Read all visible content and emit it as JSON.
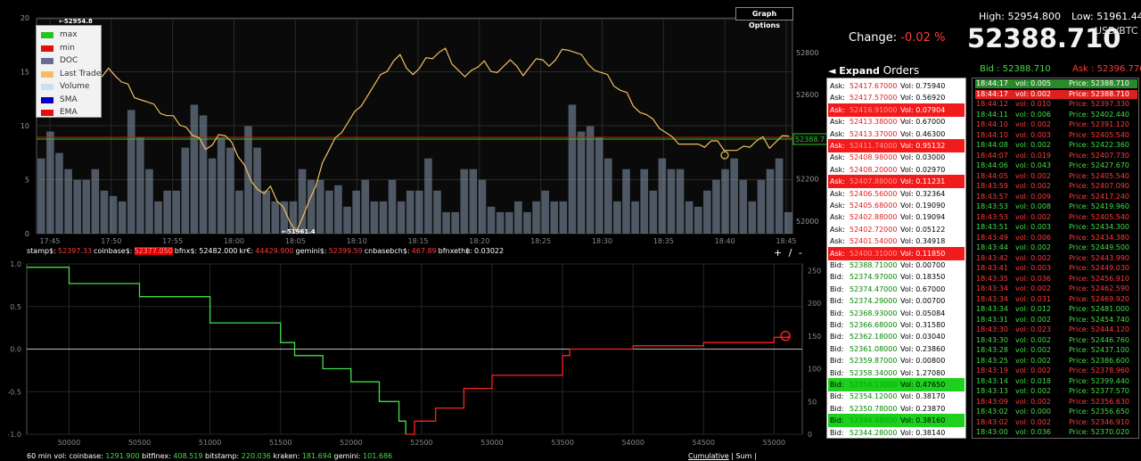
{
  "top_chart": {
    "graph_options_label": "Graph Options",
    "max_annotation": "52954.8",
    "min_annotation": "51961.4",
    "current_price_tag": "52388.7",
    "legend": [
      {
        "label": "max",
        "color": "#22c322"
      },
      {
        "label": "min",
        "color": "#e01010"
      },
      {
        "label": "DOC",
        "color": "#6a6a9a"
      },
      {
        "label": "Last Trade",
        "color": "#f0c060"
      },
      {
        "label": "Volume",
        "color": "#c8e0f0"
      },
      {
        "label": "SMA",
        "color": "#0000c8"
      },
      {
        "label": "EMA",
        "color": "#e01010"
      }
    ]
  },
  "chart_data": [
    {
      "type": "line",
      "x_ticks": [
        "17:45",
        "17:50",
        "17:55",
        "18:00",
        "18:05",
        "18:10",
        "18:15",
        "18:20",
        "18:25",
        "18:30",
        "18:35",
        "18:40",
        "18:45"
      ],
      "y_left_ticks": [
        "0",
        "5",
        "10",
        "15",
        "20"
      ],
      "y_right_ticks": [
        "52000",
        "52200",
        "52400",
        "52600",
        "52800"
      ],
      "ylim_left": [
        0,
        20
      ],
      "ylim_right": [
        51940,
        52960
      ],
      "grid": true,
      "legend_position": "top-left",
      "volume_bars": [
        7,
        9.5,
        7.5,
        6,
        5,
        5,
        6,
        4,
        3.5,
        3,
        11.5,
        9,
        6,
        3,
        4,
        4,
        8,
        12,
        11,
        7,
        9,
        8,
        4,
        10,
        8,
        4,
        3,
        3,
        3,
        6,
        5,
        5,
        4,
        4.5,
        2.5,
        4,
        5,
        3,
        3,
        5,
        3,
        4,
        4,
        7,
        4,
        2,
        2,
        6,
        6,
        5,
        2.5,
        2,
        2,
        3,
        2,
        3,
        4,
        3,
        3,
        12,
        9.5,
        10,
        9,
        7,
        3,
        6,
        3,
        6,
        4,
        7,
        6,
        6,
        3,
        2.5,
        4,
        5,
        6,
        7,
        5,
        3,
        5,
        6,
        7,
        2
      ],
      "last_trade": [
        52900,
        52880,
        52850,
        52820,
        52790,
        52760,
        52740,
        52700,
        52690,
        52680,
        52710,
        52700,
        52660,
        52640,
        52600,
        52580,
        52560,
        52540,
        52520,
        52500,
        52490,
        52470,
        52450,
        52400,
        52380,
        52350,
        52360,
        52400,
        52420,
        52380,
        52300,
        52250,
        52200,
        52150,
        52120,
        52180,
        52100,
        52060,
        51980,
        51961,
        52020,
        52090,
        52180,
        52280,
        52330,
        52380,
        52430,
        52470,
        52510,
        52560,
        52600,
        52640,
        52680,
        52720,
        52760,
        52780,
        52740,
        52700,
        52720,
        52760,
        52780,
        52800,
        52810,
        52760,
        52720,
        52680,
        52700,
        52740,
        52760,
        52700,
        52720,
        52740,
        52760,
        52720,
        52700,
        52730,
        52760,
        52780,
        52740,
        52760,
        52800,
        52820,
        52800,
        52780,
        52760,
        52720,
        52700,
        52680,
        52650,
        52620,
        52600,
        52560,
        52520,
        52500,
        52470,
        52450,
        52420,
        52390,
        52380,
        52370,
        52360,
        52350,
        52360,
        52380,
        52370,
        52350,
        52340,
        52330,
        52340,
        52360,
        52380,
        52390,
        52360,
        52380,
        52400,
        52388
      ],
      "max_value": 52954.8,
      "min_value": 51961.4,
      "last_price": 52388.7
    },
    {
      "type": "line",
      "x_ticks": [
        "50000",
        "50500",
        "51000",
        "51500",
        "52000",
        "52500",
        "53000",
        "53500",
        "54000",
        "54500",
        "55000"
      ],
      "y_left_ticks": [
        "-1.0",
        "-0.5",
        "0.0",
        "0.5",
        "1.0"
      ],
      "y_right_ticks": [
        "0",
        "50",
        "100",
        "150",
        "200",
        "250"
      ],
      "xlim": [
        49700,
        55200
      ],
      "ylim_right": [
        0,
        260
      ],
      "grid": true,
      "bids": [
        [
          49700,
          255
        ],
        [
          50000,
          250
        ],
        [
          50000,
          230
        ],
        [
          50500,
          210
        ],
        [
          51000,
          170
        ],
        [
          51500,
          140
        ],
        [
          51600,
          120
        ],
        [
          51800,
          100
        ],
        [
          52000,
          80
        ],
        [
          52200,
          50
        ],
        [
          52340,
          20
        ],
        [
          52388,
          0
        ]
      ],
      "asks": [
        [
          52388,
          0
        ],
        [
          52450,
          20
        ],
        [
          52600,
          40
        ],
        [
          52800,
          70
        ],
        [
          53000,
          90
        ],
        [
          53500,
          120
        ],
        [
          53550,
          130
        ],
        [
          54000,
          135
        ],
        [
          54500,
          140
        ],
        [
          55000,
          148
        ],
        [
          55100,
          150
        ]
      ]
    }
  ],
  "ticker": [
    {
      "label": "stamp$:",
      "value": "52397.33",
      "highlight": false
    },
    {
      "label": "coinbase$:",
      "value": "52377.050",
      "highlight": true
    },
    {
      "label": "bfnx$:",
      "value": "52482.000",
      "highlight": false,
      "white": true
    },
    {
      "label": "kr€:",
      "value": "44429.900",
      "highlight": false
    },
    {
      "label": "gemini$:",
      "value": "52399.59",
      "highlight": false
    },
    {
      "label": "cnbasebch$:",
      "value": "467.89",
      "highlight": false
    },
    {
      "label": "bfnxeth฿:",
      "value": "0.03022",
      "highlight": false,
      "white": true
    }
  ],
  "zoom_ctrl": "+ / -",
  "volume_footer": {
    "label": "60 min vol:",
    "items": [
      {
        "name": "coinbase:",
        "value": "1291.900"
      },
      {
        "name": "bitfinex:",
        "value": "408.519"
      },
      {
        "name": "bitstamp:",
        "value": "220.036"
      },
      {
        "name": "kraken:",
        "value": "181.694"
      },
      {
        "name": "gemini:",
        "value": "101.686"
      }
    ]
  },
  "cumulative_links": {
    "cumulative": "Cumulative",
    "sep": "|",
    "sum": "Sum",
    "end": "|"
  },
  "header": {
    "high": "High: 52954.800",
    "low": "Low: 51961.440",
    "change_label": "Change:",
    "change_value": "-0.02 %",
    "price": "52388.710",
    "currency": "USD/BTC",
    "expand_label": "◄ Expand",
    "orders_label": "Orders",
    "bid_head": "Bid  : 52388.710",
    "ask_head": "Ask : 52396.770"
  },
  "orders": [
    {
      "side": "Ask:",
      "price": "52417.67000",
      "vol": "Vol: 0.75940",
      "type": "ask",
      "hi": false
    },
    {
      "side": "Ask:",
      "price": "52417.57000",
      "vol": "Vol: 0.56920",
      "type": "ask",
      "hi": false
    },
    {
      "side": "Ask:",
      "price": "52416.91000",
      "vol": "Vol: 0.07904",
      "type": "ask",
      "hi": true
    },
    {
      "side": "Ask:",
      "price": "52413.38000",
      "vol": "Vol: 0.67000",
      "type": "ask",
      "hi": false
    },
    {
      "side": "Ask:",
      "price": "52413.37000",
      "vol": "Vol: 0.46300",
      "type": "ask",
      "hi": false
    },
    {
      "side": "Ask:",
      "price": "52411.74000",
      "vol": "Vol: 0.95132",
      "type": "ask",
      "hi": true
    },
    {
      "side": "Ask:",
      "price": "52408.98000",
      "vol": "Vol: 0.03000",
      "type": "ask",
      "hi": false
    },
    {
      "side": "Ask:",
      "price": "52408.20000",
      "vol": "Vol: 0.02970",
      "type": "ask",
      "hi": false
    },
    {
      "side": "Ask:",
      "price": "52407.88000",
      "vol": "Vol: 0.11231",
      "type": "ask",
      "hi": true
    },
    {
      "side": "Ask:",
      "price": "52406.56000",
      "vol": "Vol: 0.32364",
      "type": "ask",
      "hi": false
    },
    {
      "side": "Ask:",
      "price": "52405.68000",
      "vol": "Vol: 0.19090",
      "type": "ask",
      "hi": false
    },
    {
      "side": "Ask:",
      "price": "52402.88000",
      "vol": "Vol: 0.19094",
      "type": "ask",
      "hi": false
    },
    {
      "side": "Ask:",
      "price": "52402.72000",
      "vol": "Vol: 0.05122",
      "type": "ask",
      "hi": false
    },
    {
      "side": "Ask:",
      "price": "52401.54000",
      "vol": "Vol: 0.34918",
      "type": "ask",
      "hi": false
    },
    {
      "side": "Ask:",
      "price": "52400.31000",
      "vol": "Vol: 0.11850",
      "type": "ask",
      "hi": true
    },
    {
      "side": "Bid:",
      "price": "52388.71000",
      "vol": "Vol: 0.00700",
      "type": "bid",
      "hi": false
    },
    {
      "side": "Bid:",
      "price": "52374.97000",
      "vol": "Vol: 0.18350",
      "type": "bid",
      "hi": false
    },
    {
      "side": "Bid:",
      "price": "52374.47000",
      "vol": "Vol: 0.67000",
      "type": "bid",
      "hi": false
    },
    {
      "side": "Bid:",
      "price": "52374.29000",
      "vol": "Vol: 0.00700",
      "type": "bid",
      "hi": false
    },
    {
      "side": "Bid:",
      "price": "52368.93000",
      "vol": "Vol: 0.05084",
      "type": "bid",
      "hi": false
    },
    {
      "side": "Bid:",
      "price": "52366.68000",
      "vol": "Vol: 0.31580",
      "type": "bid",
      "hi": false
    },
    {
      "side": "Bid:",
      "price": "52362.18000",
      "vol": "Vol: 0.03040",
      "type": "bid",
      "hi": false
    },
    {
      "side": "Bid:",
      "price": "52361.08000",
      "vol": "Vol: 0.23860",
      "type": "bid",
      "hi": false
    },
    {
      "side": "Bid:",
      "price": "52359.87000",
      "vol": "Vol: 0.00800",
      "type": "bid",
      "hi": false
    },
    {
      "side": "Bid:",
      "price": "52358.34000",
      "vol": "Vol: 1.27080",
      "type": "bid",
      "hi": false
    },
    {
      "side": "Bid:",
      "price": "52354.13000",
      "vol": "Vol: 0.47650",
      "type": "bid",
      "hi": true
    },
    {
      "side": "Bid:",
      "price": "52354.12000",
      "vol": "Vol: 0.38170",
      "type": "bid",
      "hi": false
    },
    {
      "side": "Bid:",
      "price": "52350.78000",
      "vol": "Vol: 0.23870",
      "type": "bid",
      "hi": false
    },
    {
      "side": "Bid:",
      "price": "52344.48000",
      "vol": "Vol: 0.38160",
      "type": "bid",
      "hi": true
    },
    {
      "side": "Bid:",
      "price": "52344.28000",
      "vol": "Vol: 0.38140",
      "type": "bid",
      "hi": false
    }
  ],
  "trades": [
    {
      "time": "18:44:17",
      "vol": "vol: 0.005",
      "price": "Price: 52388.710",
      "type": "buy",
      "hi": true
    },
    {
      "time": "18:44:17",
      "vol": "vol: 0.002",
      "price": "Price: 52388.710",
      "type": "sell",
      "hi": true
    },
    {
      "time": "18:44:12",
      "vol": "vol: 0.010",
      "price": "Price: 52397.330",
      "type": "sell",
      "hi": false
    },
    {
      "time": "18:44:11",
      "vol": "vol: 0.006",
      "price": "Price: 52402.440",
      "type": "buy",
      "hi": false
    },
    {
      "time": "18:44:10",
      "vol": "vol: 0.002",
      "price": "Price: 52391.120",
      "type": "sell",
      "hi": false
    },
    {
      "time": "18:44:10",
      "vol": "vol: 0.003",
      "price": "Price: 52405.540",
      "type": "sell",
      "hi": false
    },
    {
      "time": "18:44:08",
      "vol": "vol: 0.002",
      "price": "Price: 52422.360",
      "type": "buy",
      "hi": false
    },
    {
      "time": "18:44:07",
      "vol": "vol: 0.019",
      "price": "Price: 52407.730",
      "type": "sell",
      "hi": false
    },
    {
      "time": "18:44:06",
      "vol": "vol: 0.043",
      "price": "Price: 52427.670",
      "type": "buy",
      "hi": false
    },
    {
      "time": "18:44:05",
      "vol": "vol: 0.002",
      "price": "Price: 52405.540",
      "type": "sell",
      "hi": false
    },
    {
      "time": "18:43:59",
      "vol": "vol: 0.002",
      "price": "Price: 52407.090",
      "type": "sell",
      "hi": false
    },
    {
      "time": "18:43:57",
      "vol": "vol: 0.009",
      "price": "Price: 52417.240",
      "type": "sell",
      "hi": false
    },
    {
      "time": "18:43:53",
      "vol": "vol: 0.008",
      "price": "Price: 52419.960",
      "type": "buy",
      "hi": false
    },
    {
      "time": "18:43:53",
      "vol": "vol: 0.002",
      "price": "Price: 52405.540",
      "type": "sell",
      "hi": false
    },
    {
      "time": "18:43:51",
      "vol": "vol: 0.003",
      "price": "Price: 52434.300",
      "type": "buy",
      "hi": false
    },
    {
      "time": "18:43:49",
      "vol": "vol: 0.006",
      "price": "Price: 52434.380",
      "type": "sell",
      "hi": false
    },
    {
      "time": "18:43:44",
      "vol": "vol: 0.002",
      "price": "Price: 52449.500",
      "type": "buy",
      "hi": false
    },
    {
      "time": "18:43:42",
      "vol": "vol: 0.002",
      "price": "Price: 52443.990",
      "type": "sell",
      "hi": false
    },
    {
      "time": "18:43:41",
      "vol": "vol: 0.003",
      "price": "Price: 52449.030",
      "type": "sell",
      "hi": false
    },
    {
      "time": "18:43:35",
      "vol": "vol: 0.036",
      "price": "Price: 52456.910",
      "type": "sell",
      "hi": false
    },
    {
      "time": "18:43:34",
      "vol": "vol: 0.002",
      "price": "Price: 52462.590",
      "type": "sell",
      "hi": false
    },
    {
      "time": "18:43:34",
      "vol": "vol: 0.031",
      "price": "Price: 52469.920",
      "type": "sell",
      "hi": false
    },
    {
      "time": "18:43:34",
      "vol": "vol: 0.012",
      "price": "Price: 52481.000",
      "type": "buy",
      "hi": false
    },
    {
      "time": "18:43:31",
      "vol": "vol: 0.002",
      "price": "Price: 52454.740",
      "type": "buy",
      "hi": false
    },
    {
      "time": "18:43:30",
      "vol": "vol: 0.023",
      "price": "Price: 52444.120",
      "type": "sell",
      "hi": false
    },
    {
      "time": "18:43:30",
      "vol": "vol: 0.002",
      "price": "Price: 52446.760",
      "type": "buy",
      "hi": false
    },
    {
      "time": "18:43:28",
      "vol": "vol: 0.002",
      "price": "Price: 52437.100",
      "type": "buy",
      "hi": false
    },
    {
      "time": "18:43:25",
      "vol": "vol: 0.002",
      "price": "Price: 52386.600",
      "type": "buy",
      "hi": false
    },
    {
      "time": "18:43:19",
      "vol": "vol: 0.002",
      "price": "Price: 52378.960",
      "type": "sell",
      "hi": false
    },
    {
      "time": "18:43:14",
      "vol": "vol: 0.018",
      "price": "Price: 52399.440",
      "type": "buy",
      "hi": false
    },
    {
      "time": "18:43:13",
      "vol": "vol: 0.002",
      "price": "Price: 52377.570",
      "type": "buy",
      "hi": false
    },
    {
      "time": "18:43:09",
      "vol": "vol: 0.002",
      "price": "Price: 52356.630",
      "type": "sell",
      "hi": false
    },
    {
      "time": "18:43:02",
      "vol": "vol: 0.000",
      "price": "Price: 52356.650",
      "type": "buy",
      "hi": false
    },
    {
      "time": "18:43:02",
      "vol": "vol: 0.002",
      "price": "Price: 52346.910",
      "type": "sell",
      "hi": false
    },
    {
      "time": "18:43:00",
      "vol": "vol: 0.036",
      "price": "Price: 52370.020",
      "type": "buy",
      "hi": false
    }
  ]
}
